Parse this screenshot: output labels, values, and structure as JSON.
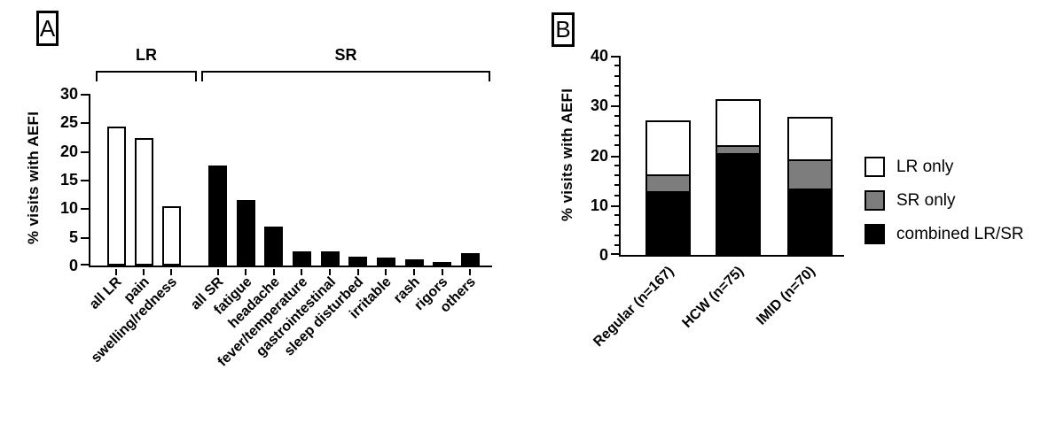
{
  "figure": {
    "background": "#ffffff",
    "axis_color": "#000000"
  },
  "chart_data": [
    {
      "panel_label": "A",
      "type": "bar",
      "title": "",
      "xlabel": "",
      "ylabel": "% visits with AEFI",
      "ylim": [
        0,
        30
      ],
      "yticks": [
        0,
        5,
        10,
        15,
        20,
        25,
        30
      ],
      "grid": false,
      "categories": [
        "all LR",
        "pain",
        "swelling/redness",
        "all SR",
        "fatigue",
        "headache",
        "fever/temperature",
        "gastrointestinal",
        "sleep disturbed",
        "irritable",
        "rash",
        "rigors",
        "others"
      ],
      "values": [
        24.3,
        22.2,
        10.3,
        17.5,
        11.5,
        6.8,
        2.4,
        2.5,
        1.5,
        1.4,
        1.1,
        0.6,
        2.2
      ],
      "bar_fills": [
        "#ffffff",
        "#ffffff",
        "#ffffff",
        "#000000",
        "#000000",
        "#000000",
        "#000000",
        "#000000",
        "#000000",
        "#000000",
        "#000000",
        "#000000",
        "#000000"
      ],
      "group_brackets": [
        {
          "label": "LR",
          "from": 0,
          "to": 2
        },
        {
          "label": "SR",
          "from": 3,
          "to": 12
        }
      ]
    },
    {
      "panel_label": "B",
      "type": "stacked_bar",
      "title": "",
      "xlabel": "",
      "ylabel": "% visits with AEFI",
      "ylim": [
        0,
        40
      ],
      "yticks_major": [
        0,
        10,
        20,
        30,
        40
      ],
      "ytick_minor_step": 2,
      "grid": false,
      "categories": [
        "Regular (n=167)",
        "HCW (n=75)",
        "IMID (n=70)"
      ],
      "series": [
        {
          "name": "combined LR/SR",
          "color": "#000000",
          "values": [
            12.5,
            20.1,
            12.9
          ]
        },
        {
          "name": "SR only",
          "color": "#7d7d7d",
          "values": [
            2.9,
            1.2,
            5.6
          ]
        },
        {
          "name": "LR only",
          "color": "#ffffff",
          "values": [
            10.9,
            9.3,
            8.5
          ]
        }
      ],
      "stack_totals": [
        26.3,
        30.6,
        27.0
      ],
      "legend": [
        {
          "label": "LR only",
          "color": "#ffffff"
        },
        {
          "label": "SR only",
          "color": "#7d7d7d"
        },
        {
          "label": "combined LR/SR",
          "color": "#000000"
        }
      ],
      "legend_position": "right"
    }
  ]
}
